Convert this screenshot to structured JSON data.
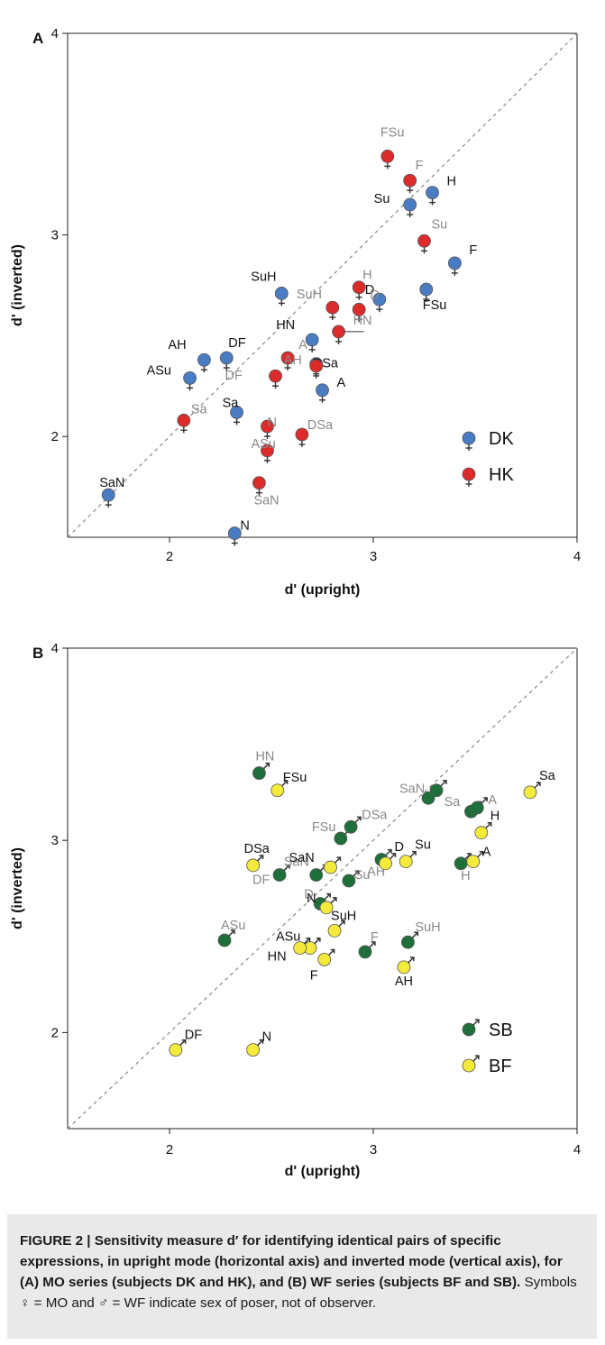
{
  "chart_data": [
    {
      "type": "scatter",
      "panel_label": "A",
      "xlabel": "d' (upright)",
      "ylabel": "d' (inverted)",
      "xlim": [
        1.5,
        4
      ],
      "ylim": [
        1.5,
        4
      ],
      "xticks": [
        "2",
        "3",
        "4"
      ],
      "yticks": [
        "2",
        "3",
        "4"
      ],
      "marker": "female",
      "diagonal": "dashed",
      "legend_position": "bottom-right",
      "series": [
        {
          "name": "DK",
          "color": "#4a7cc4",
          "label_color": "#111111",
          "points": [
            {
              "label": "SaN",
              "x": 1.7,
              "y": 1.71
            },
            {
              "label": "ASu",
              "x": 2.1,
              "y": 2.29
            },
            {
              "label": "AH",
              "x": 2.17,
              "y": 2.38
            },
            {
              "label": "DF",
              "x": 2.28,
              "y": 2.39
            },
            {
              "label": "Sa",
              "x": 2.33,
              "y": 2.12
            },
            {
              "label": "N",
              "x": 2.32,
              "y": 1.52
            },
            {
              "label": "SuH",
              "x": 2.55,
              "y": 2.71
            },
            {
              "label": "HN",
              "x": 2.7,
              "y": 2.48
            },
            {
              "label": "DSa",
              "x": 2.72,
              "y": 2.36
            },
            {
              "label": "A",
              "x": 2.75,
              "y": 2.23
            },
            {
              "label": "D",
              "x": 3.03,
              "y": 2.68
            },
            {
              "label": "Su",
              "x": 3.18,
              "y": 3.15
            },
            {
              "label": "H",
              "x": 3.29,
              "y": 3.21
            },
            {
              "label": "F",
              "x": 3.4,
              "y": 2.86
            },
            {
              "label": "FSu",
              "x": 3.26,
              "y": 2.73
            }
          ]
        },
        {
          "name": "HK",
          "color": "#dd2b2b",
          "label_color": "#8a8a8a",
          "points": [
            {
              "label": "Sa",
              "x": 2.07,
              "y": 2.08
            },
            {
              "label": "DF",
              "x": 2.52,
              "y": 2.3
            },
            {
              "label": "A",
              "x": 2.58,
              "y": 2.39
            },
            {
              "label": "AH",
              "x": 2.72,
              "y": 2.35
            },
            {
              "label": "N",
              "x": 2.48,
              "y": 2.05
            },
            {
              "label": "ASu",
              "x": 2.48,
              "y": 1.93
            },
            {
              "label": "SaN",
              "x": 2.44,
              "y": 1.77
            },
            {
              "label": "DSa",
              "x": 2.65,
              "y": 2.01
            },
            {
              "label": "SuH",
              "x": 2.8,
              "y": 2.64
            },
            {
              "label": "H",
              "x": 2.93,
              "y": 2.74
            },
            {
              "label": "D",
              "x": 2.93,
              "y": 2.63
            },
            {
              "label": "HN",
              "x": 2.83,
              "y": 2.52
            },
            {
              "label": "FSu",
              "x": 3.07,
              "y": 3.39
            },
            {
              "label": "F",
              "x": 3.18,
              "y": 3.27
            },
            {
              "label": "Su",
              "x": 3.25,
              "y": 2.97
            }
          ]
        }
      ]
    },
    {
      "type": "scatter",
      "panel_label": "B",
      "xlabel": "d' (upright)",
      "ylabel": "d' (inverted)",
      "xlim": [
        1.5,
        4
      ],
      "ylim": [
        1.5,
        4
      ],
      "xticks": [
        "2",
        "3",
        "4"
      ],
      "yticks": [
        "2",
        "3",
        "4"
      ],
      "marker": "male",
      "diagonal": "dashed",
      "legend_position": "bottom-right",
      "series": [
        {
          "name": "SB",
          "color": "#1f6f3a",
          "label_color": "#8a8a8a",
          "points": [
            {
              "label": "HN",
              "x": 2.44,
              "y": 3.35
            },
            {
              "label": "FSu",
              "x": 2.84,
              "y": 3.01
            },
            {
              "label": "DSa",
              "x": 2.89,
              "y": 3.07
            },
            {
              "label": "SaN",
              "x": 3.27,
              "y": 3.22
            },
            {
              "label": "",
              "x": 3.31,
              "y": 3.26
            },
            {
              "label": "Sa",
              "x": 3.48,
              "y": 3.15
            },
            {
              "label": "A",
              "x": 3.51,
              "y": 3.17
            },
            {
              "label": "DF",
              "x": 2.54,
              "y": 2.82
            },
            {
              "label": "SaN",
              "x": 2.72,
              "y": 2.82
            },
            {
              "label": "Su",
              "x": 2.88,
              "y": 2.79
            },
            {
              "label": "D",
              "x": 2.74,
              "y": 2.67
            },
            {
              "label": "AH",
              "x": 3.04,
              "y": 2.9
            },
            {
              "label": "H",
              "x": 3.43,
              "y": 2.88
            },
            {
              "label": "ASu",
              "x": 2.27,
              "y": 2.48
            },
            {
              "label": "F",
              "x": 2.96,
              "y": 2.42
            },
            {
              "label": "SuH",
              "x": 3.17,
              "y": 2.47
            }
          ]
        },
        {
          "name": "BF",
          "color": "#f4ea3c",
          "label_color": "#111111",
          "points": [
            {
              "label": "FSu",
              "x": 2.53,
              "y": 3.26
            },
            {
              "label": "DSa",
              "x": 2.41,
              "y": 2.87
            },
            {
              "label": "SaN",
              "x": 2.79,
              "y": 2.86
            },
            {
              "label": "D",
              "x": 3.06,
              "y": 2.88
            },
            {
              "label": "Su",
              "x": 3.16,
              "y": 2.89
            },
            {
              "label": "H",
              "x": 3.53,
              "y": 3.04
            },
            {
              "label": "A",
              "x": 3.49,
              "y": 2.89
            },
            {
              "label": "Sa",
              "x": 3.77,
              "y": 3.25
            },
            {
              "label": "N",
              "x": 2.77,
              "y": 2.65
            },
            {
              "label": "SuH",
              "x": 2.81,
              "y": 2.53
            },
            {
              "label": "ASu",
              "x": 2.69,
              "y": 2.44
            },
            {
              "label": "HN",
              "x": 2.64,
              "y": 2.44
            },
            {
              "label": "F",
              "x": 2.76,
              "y": 2.38
            },
            {
              "label": "AH",
              "x": 3.15,
              "y": 2.34
            },
            {
              "label": "DF",
              "x": 2.03,
              "y": 1.91
            },
            {
              "label": "N",
              "x": 2.41,
              "y": 1.91
            }
          ]
        }
      ]
    }
  ],
  "caption": {
    "bold": "FIGURE 2 | Sensitivity measure d′ for identifying identical pairs of specific expressions, in upright mode (horizontal axis) and inverted mode (vertical axis), for (A) MO series (subjects DK and HK), and (B) WF series (subjects BF and SB).",
    "normal": " Symbols ♀ = MO and ♂ = WF indicate sex of poser, not of observer."
  }
}
